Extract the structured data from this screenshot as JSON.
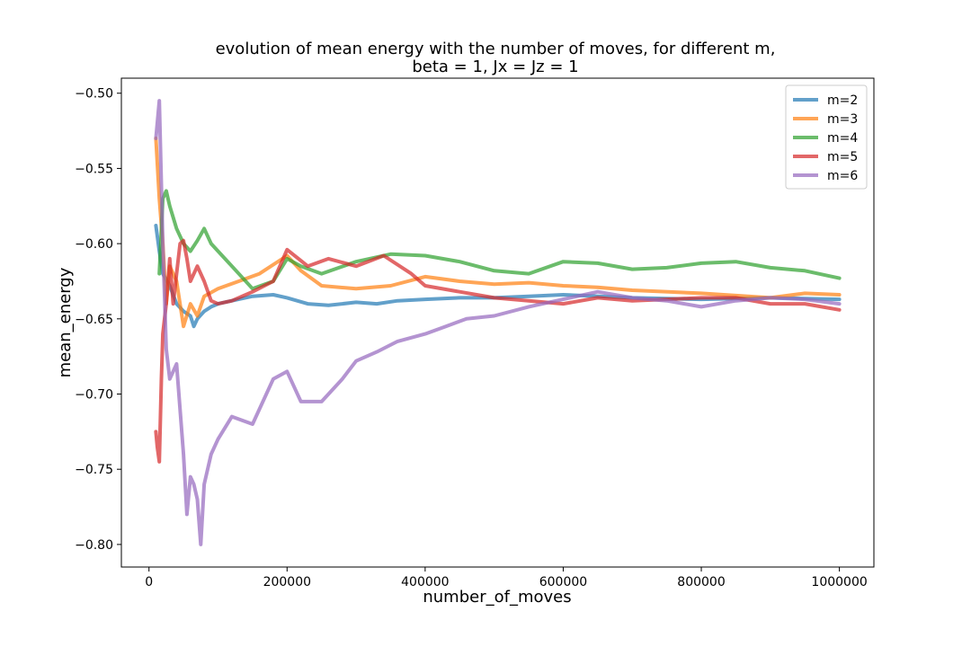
{
  "chart_data": {
    "type": "line",
    "title": "evolution of mean energy with the number of moves, for different m,",
    "subtitle": "beta = 1, Jx = Jz = 1",
    "xlabel": "number_of_moves",
    "ylabel": "mean_energy",
    "xlim": [
      -40000,
      1050000
    ],
    "ylim": [
      -0.815,
      -0.49
    ],
    "xticks": [
      0,
      200000,
      400000,
      600000,
      800000,
      1000000
    ],
    "xtick_labels": [
      "0",
      "200000",
      "400000",
      "600000",
      "800000",
      "1000000"
    ],
    "yticks": [
      -0.5,
      -0.55,
      -0.6,
      -0.65,
      -0.7,
      -0.75,
      -0.8
    ],
    "ytick_labels": [
      "−0.50",
      "−0.55",
      "−0.60",
      "−0.65",
      "−0.70",
      "−0.75",
      "−0.80"
    ],
    "grid": false,
    "legend_position": "top-right",
    "series": [
      {
        "name": "m=2",
        "color": "#1f77b4",
        "x": [
          10000,
          15000,
          20000,
          30000,
          40000,
          50000,
          60000,
          65000,
          70000,
          80000,
          90000,
          100000,
          120000,
          150000,
          180000,
          200000,
          230000,
          260000,
          300000,
          330000,
          360000,
          400000,
          450000,
          500000,
          550000,
          600000,
          700000,
          800000,
          900000,
          1000000
        ],
        "y": [
          -0.588,
          -0.605,
          -0.62,
          -0.628,
          -0.64,
          -0.645,
          -0.648,
          -0.655,
          -0.65,
          -0.645,
          -0.642,
          -0.64,
          -0.638,
          -0.635,
          -0.634,
          -0.636,
          -0.64,
          -0.641,
          -0.639,
          -0.64,
          -0.638,
          -0.637,
          -0.636,
          -0.636,
          -0.635,
          -0.634,
          -0.636,
          -0.637,
          -0.636,
          -0.637
        ]
      },
      {
        "name": "m=3",
        "color": "#ff7f0e",
        "x": [
          10000,
          15000,
          20000,
          25000,
          30000,
          40000,
          50000,
          60000,
          70000,
          80000,
          100000,
          130000,
          160000,
          200000,
          220000,
          250000,
          300000,
          350000,
          400000,
          450000,
          500000,
          550000,
          600000,
          650000,
          700000,
          800000,
          900000,
          950000,
          1000000
        ],
        "y": [
          -0.53,
          -0.57,
          -0.6,
          -0.64,
          -0.615,
          -0.625,
          -0.655,
          -0.64,
          -0.648,
          -0.635,
          -0.63,
          -0.625,
          -0.62,
          -0.608,
          -0.618,
          -0.628,
          -0.63,
          -0.628,
          -0.622,
          -0.625,
          -0.627,
          -0.626,
          -0.628,
          -0.629,
          -0.631,
          -0.633,
          -0.636,
          -0.633,
          -0.634
        ]
      },
      {
        "name": "m=4",
        "color": "#2ca02c",
        "x": [
          15000,
          20000,
          25000,
          30000,
          40000,
          50000,
          60000,
          70000,
          80000,
          90000,
          100000,
          120000,
          150000,
          180000,
          200000,
          220000,
          250000,
          300000,
          350000,
          400000,
          450000,
          500000,
          550000,
          600000,
          650000,
          700000,
          750000,
          800000,
          850000,
          900000,
          950000,
          1000000
        ],
        "y": [
          -0.62,
          -0.57,
          -0.565,
          -0.575,
          -0.59,
          -0.6,
          -0.605,
          -0.598,
          -0.59,
          -0.6,
          -0.605,
          -0.615,
          -0.63,
          -0.625,
          -0.61,
          -0.615,
          -0.62,
          -0.612,
          -0.607,
          -0.608,
          -0.612,
          -0.618,
          -0.62,
          -0.612,
          -0.613,
          -0.617,
          -0.616,
          -0.613,
          -0.612,
          -0.616,
          -0.618,
          -0.623
        ]
      },
      {
        "name": "m=5",
        "color": "#d62728",
        "x": [
          10000,
          12000,
          15000,
          18000,
          20000,
          25000,
          30000,
          35000,
          40000,
          45000,
          50000,
          55000,
          60000,
          70000,
          80000,
          90000,
          100000,
          120000,
          150000,
          180000,
          200000,
          230000,
          260000,
          300000,
          340000,
          380000,
          400000,
          450000,
          500000,
          550000,
          600000,
          650000,
          700000,
          750000,
          800000,
          850000,
          900000,
          950000,
          1000000
        ],
        "y": [
          -0.725,
          -0.735,
          -0.745,
          -0.69,
          -0.66,
          -0.64,
          -0.61,
          -0.64,
          -0.62,
          -0.6,
          -0.598,
          -0.61,
          -0.625,
          -0.615,
          -0.625,
          -0.638,
          -0.64,
          -0.638,
          -0.632,
          -0.625,
          -0.604,
          -0.615,
          -0.61,
          -0.615,
          -0.608,
          -0.62,
          -0.628,
          -0.632,
          -0.636,
          -0.638,
          -0.64,
          -0.636,
          -0.638,
          -0.637,
          -0.636,
          -0.636,
          -0.64,
          -0.64,
          -0.644
        ]
      },
      {
        "name": "m=6",
        "color": "#9467bd",
        "x": [
          10000,
          15000,
          20000,
          25000,
          30000,
          40000,
          50000,
          55000,
          60000,
          65000,
          70000,
          75000,
          80000,
          90000,
          100000,
          120000,
          150000,
          180000,
          200000,
          220000,
          250000,
          280000,
          300000,
          330000,
          360000,
          400000,
          430000,
          460000,
          500000,
          550000,
          600000,
          650000,
          700000,
          750000,
          800000,
          850000,
          900000,
          950000,
          1000000
        ],
        "y": [
          -0.53,
          -0.505,
          -0.6,
          -0.67,
          -0.69,
          -0.68,
          -0.74,
          -0.78,
          -0.755,
          -0.76,
          -0.77,
          -0.8,
          -0.76,
          -0.74,
          -0.73,
          -0.715,
          -0.72,
          -0.69,
          -0.685,
          -0.705,
          -0.705,
          -0.69,
          -0.678,
          -0.672,
          -0.665,
          -0.66,
          -0.655,
          -0.65,
          -0.648,
          -0.642,
          -0.637,
          -0.632,
          -0.636,
          -0.638,
          -0.642,
          -0.638,
          -0.636,
          -0.637,
          -0.64
        ]
      }
    ]
  }
}
